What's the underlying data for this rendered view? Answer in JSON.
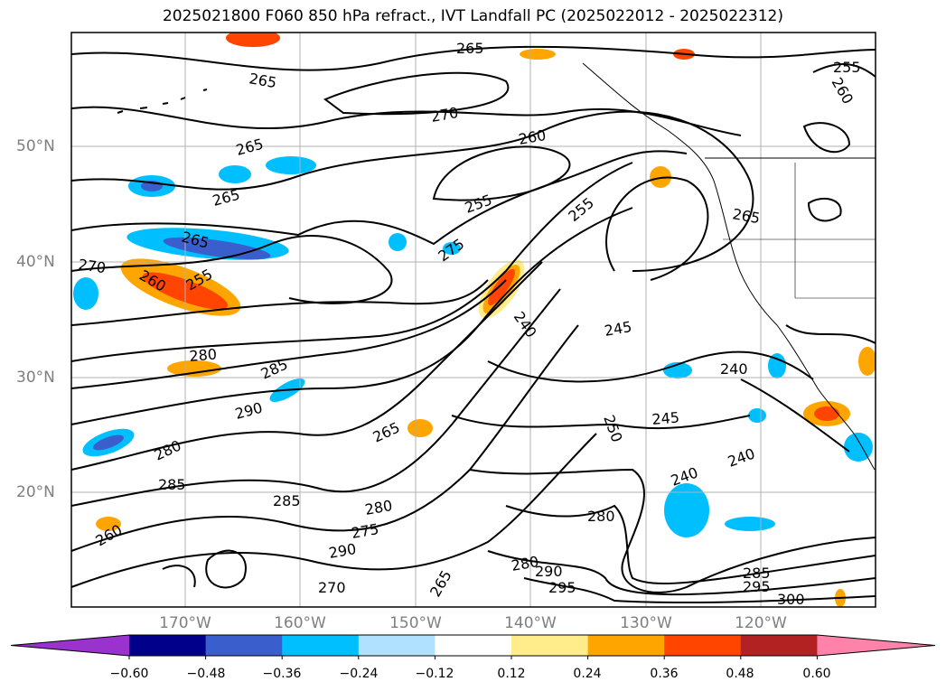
{
  "title": "2025021800 F060 850 hPa refract., IVT Landfall PC (2025022012 - 2025022312)",
  "lat_labels": [
    "50°N",
    "40°N",
    "30°N",
    "20°N"
  ],
  "lon_labels": [
    "170°W",
    "160°W",
    "150°W",
    "140°W",
    "130°W",
    "120°W"
  ],
  "colorbar": {
    "colors": [
      "#9a32cd",
      "#00008b",
      "#3a5fcd",
      "#00bfff",
      "#b0e2ff",
      "#ffffff",
      "#ffec8b",
      "#ffa500",
      "#ff4500",
      "#b22222",
      "#ff82ab"
    ],
    "tick_labels": [
      "−0.60",
      "−0.48",
      "−0.36",
      "−0.24",
      "−0.12",
      "0.12",
      "0.24",
      "0.36",
      "0.48",
      "0.60"
    ]
  },
  "contour_labels": [
    "265",
    "265",
    "270",
    "260",
    "265",
    "255",
    "265",
    "255",
    "265",
    "260",
    "255",
    "275",
    "270",
    "240",
    "245",
    "280",
    "285",
    "290",
    "240",
    "265",
    "245",
    "240",
    "250",
    "240",
    "280",
    "285",
    "280",
    "275",
    "290",
    "285",
    "260",
    "280",
    "265",
    "280",
    "290",
    "295",
    "285",
    "295",
    "300",
    "270",
    "255",
    "265",
    "260"
  ]
}
